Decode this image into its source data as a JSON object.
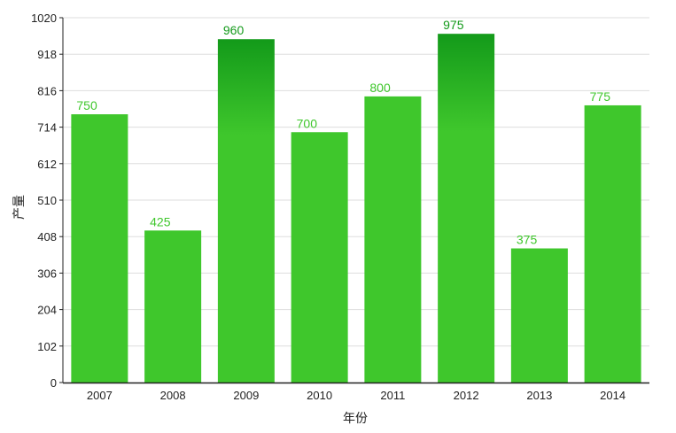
{
  "chart_data": {
    "type": "bar",
    "categories": [
      "2007",
      "2008",
      "2009",
      "2010",
      "2011",
      "2012",
      "2013",
      "2014"
    ],
    "values": [
      750,
      425,
      960,
      700,
      800,
      975,
      375,
      775
    ],
    "title": "",
    "xlabel": "年份",
    "ylabel": "产量",
    "ylim": [
      0,
      1020
    ],
    "yticks": [
      0,
      102,
      204,
      306,
      408,
      510,
      612,
      714,
      816,
      918,
      1020
    ],
    "grid": true,
    "legend": "none",
    "colors": {
      "bar": "#3fc72c",
      "bar_highlight_top": "#139a1a",
      "label_normal": "#3fc72c",
      "label_highlight": "#139a1a",
      "grid": "#dddddd",
      "axis": "#222222"
    }
  }
}
